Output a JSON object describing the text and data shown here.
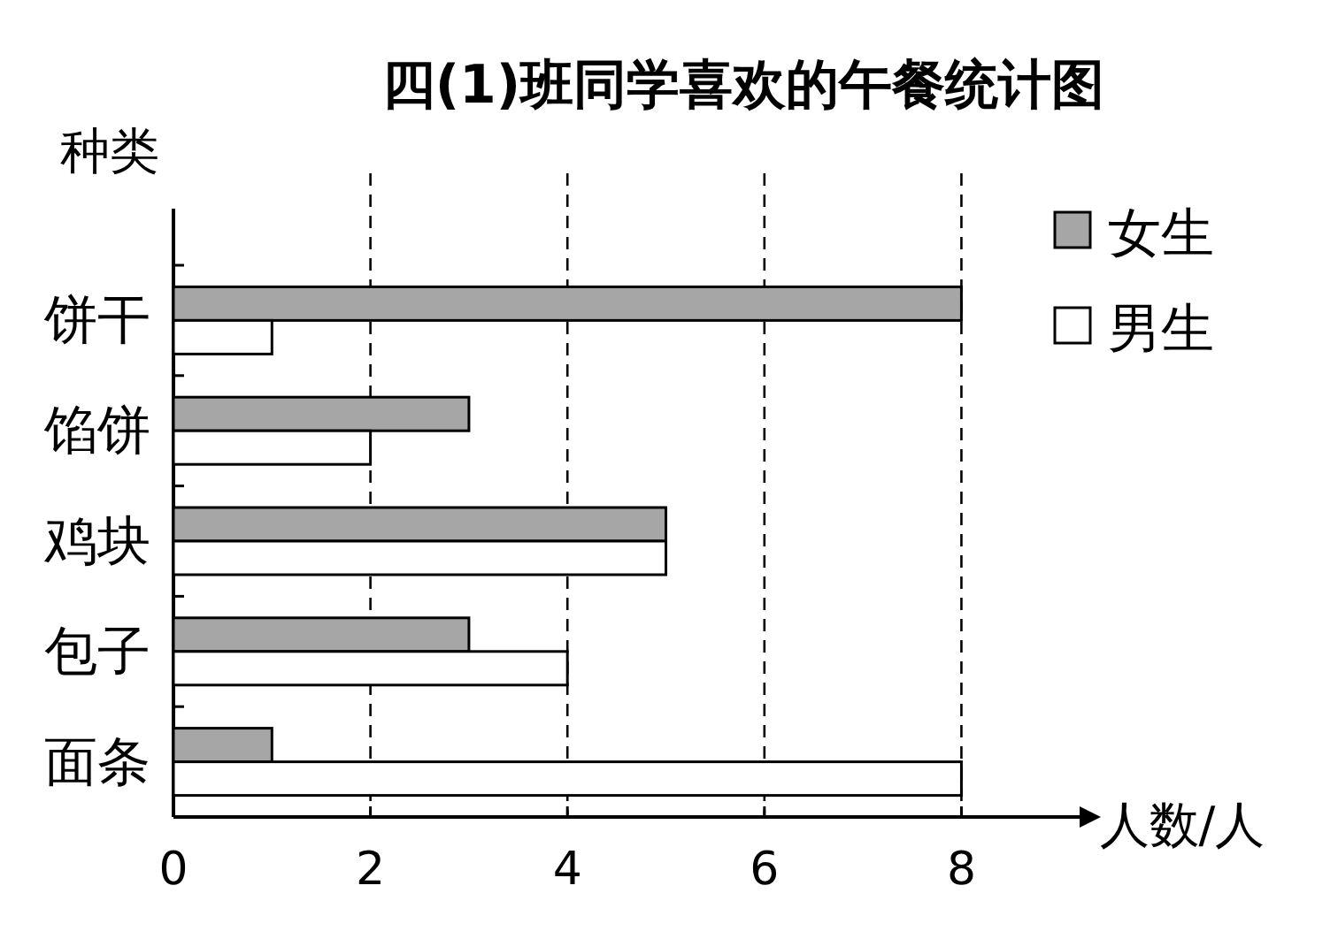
{
  "chart_data": {
    "type": "bar",
    "orientation": "horizontal",
    "title": "四(1)班同学喜欢的午餐统计图",
    "ylabel": "种类",
    "xlabel": "人数/人",
    "categories": [
      "饼干",
      "馅饼",
      "鸡块",
      "包子",
      "面条"
    ],
    "series": [
      {
        "name": "女生",
        "color": "#a6a6a6",
        "values": [
          8,
          3,
          5,
          3,
          1
        ]
      },
      {
        "name": "男生",
        "color": "#ffffff",
        "values": [
          1,
          2,
          5,
          4,
          8
        ]
      }
    ],
    "xlim": [
      0,
      9.2
    ],
    "xticks": [
      0,
      2,
      4,
      6,
      8
    ],
    "grid": "x",
    "legend": "top right"
  }
}
